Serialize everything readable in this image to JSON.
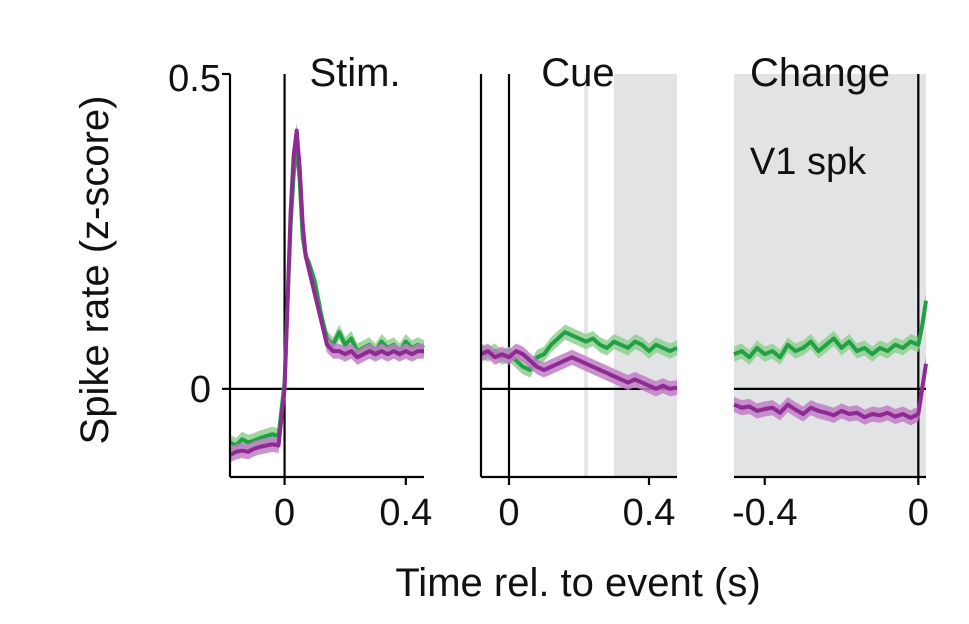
{
  "figure": {
    "ylabel": "Spike rate (z-score)",
    "xlabel": "Time rel. to event (s)",
    "annotation": "V1 spk",
    "ytick_labels": [
      "0",
      "0.5"
    ]
  },
  "colors": {
    "green": "#22a045",
    "purple": "#8e2a92",
    "green_band": "#8fd08f",
    "purple_band": "#c07ec5",
    "shade": "#e1e3e4",
    "axis": "#000000"
  },
  "chart_data": [
    {
      "type": "line",
      "title": "Stim.",
      "xlim": [
        -0.18,
        0.46
      ],
      "ylim": [
        -0.14,
        0.5
      ],
      "xticks": [
        0,
        0.4
      ],
      "xtick_labels": [
        "0",
        "0.4"
      ],
      "yticks": [
        0,
        0.5
      ],
      "event_line": 0,
      "shaded": [],
      "grid": false,
      "series": [
        {
          "color_key": "green",
          "x": [
            -0.18,
            -0.16,
            -0.14,
            -0.12,
            -0.1,
            -0.08,
            -0.06,
            -0.04,
            -0.02,
            0,
            0.01,
            0.02,
            0.03,
            0.04,
            0.05,
            0.06,
            0.07,
            0.08,
            0.1,
            0.12,
            0.14,
            0.16,
            0.18,
            0.2,
            0.22,
            0.24,
            0.26,
            0.28,
            0.3,
            0.32,
            0.34,
            0.36,
            0.38,
            0.4,
            0.42,
            0.44,
            0.46
          ],
          "y": [
            -0.085,
            -0.09,
            -0.08,
            -0.085,
            -0.082,
            -0.078,
            -0.075,
            -0.072,
            -0.075,
            0.01,
            0.14,
            0.26,
            0.34,
            0.39,
            0.33,
            0.24,
            0.21,
            0.2,
            0.17,
            0.12,
            0.08,
            0.07,
            0.09,
            0.07,
            0.08,
            0.06,
            0.065,
            0.07,
            0.06,
            0.075,
            0.065,
            0.07,
            0.06,
            0.075,
            0.065,
            0.07,
            0.065
          ]
        },
        {
          "color_key": "purple",
          "x": [
            -0.18,
            -0.16,
            -0.14,
            -0.12,
            -0.1,
            -0.08,
            -0.06,
            -0.04,
            -0.02,
            0,
            0.01,
            0.02,
            0.03,
            0.04,
            0.05,
            0.06,
            0.07,
            0.08,
            0.1,
            0.12,
            0.14,
            0.16,
            0.18,
            0.2,
            0.22,
            0.24,
            0.26,
            0.28,
            0.3,
            0.32,
            0.34,
            0.36,
            0.38,
            0.4,
            0.42,
            0.44,
            0.46
          ],
          "y": [
            -0.105,
            -0.1,
            -0.098,
            -0.1,
            -0.095,
            -0.092,
            -0.09,
            -0.088,
            -0.09,
            0.0,
            0.14,
            0.28,
            0.37,
            0.41,
            0.35,
            0.26,
            0.21,
            0.19,
            0.15,
            0.11,
            0.07,
            0.06,
            0.06,
            0.055,
            0.06,
            0.05,
            0.055,
            0.06,
            0.055,
            0.06,
            0.055,
            0.06,
            0.055,
            0.06,
            0.055,
            0.06,
            0.06
          ]
        }
      ]
    },
    {
      "type": "line",
      "title": "Cue",
      "xlim": [
        -0.08,
        0.48
      ],
      "ylim": [
        -0.14,
        0.5
      ],
      "xticks": [
        0,
        0.4
      ],
      "xtick_labels": [
        "0",
        "0.4"
      ],
      "yticks": [
        0
      ],
      "event_line": 0,
      "shaded": [
        [
          0.215,
          0.225
        ],
        [
          0.3,
          0.48
        ]
      ],
      "grid": false,
      "series": [
        {
          "color_key": "green",
          "x": [
            -0.08,
            -0.06,
            -0.04,
            -0.02,
            0,
            0.02,
            0.04,
            0.06,
            0.08,
            0.1,
            0.12,
            0.14,
            0.16,
            0.18,
            0.2,
            0.22,
            0.24,
            0.26,
            0.28,
            0.3,
            0.32,
            0.34,
            0.36,
            0.38,
            0.4,
            0.42,
            0.44,
            0.46,
            0.48
          ],
          "y": [
            0.06,
            0.055,
            0.06,
            0.05,
            0.055,
            0.045,
            0.035,
            0.03,
            0.05,
            0.055,
            0.07,
            0.08,
            0.09,
            0.085,
            0.08,
            0.075,
            0.08,
            0.07,
            0.065,
            0.075,
            0.07,
            0.065,
            0.075,
            0.07,
            0.06,
            0.07,
            0.065,
            0.06,
            0.065
          ]
        },
        {
          "color_key": "purple",
          "x": [
            -0.08,
            -0.06,
            -0.04,
            -0.02,
            0,
            0.02,
            0.04,
            0.06,
            0.08,
            0.1,
            0.12,
            0.14,
            0.16,
            0.18,
            0.2,
            0.22,
            0.24,
            0.26,
            0.28,
            0.3,
            0.32,
            0.34,
            0.36,
            0.38,
            0.4,
            0.42,
            0.44,
            0.46,
            0.48
          ],
          "y": [
            0.055,
            0.06,
            0.05,
            0.055,
            0.05,
            0.06,
            0.055,
            0.045,
            0.035,
            0.03,
            0.035,
            0.04,
            0.045,
            0.05,
            0.045,
            0.04,
            0.035,
            0.03,
            0.025,
            0.02,
            0.015,
            0.01,
            0.015,
            0.01,
            0.005,
            0.0,
            0.005,
            0.0,
            0.002
          ]
        }
      ]
    },
    {
      "type": "line",
      "title": "Change",
      "xlim": [
        -0.48,
        0.02
      ],
      "ylim": [
        -0.14,
        0.5
      ],
      "xticks": [
        -0.4,
        0
      ],
      "xtick_labels": [
        "-0.4",
        "0"
      ],
      "yticks": [
        0
      ],
      "event_line": 0,
      "shaded": [
        [
          -0.48,
          0.02
        ]
      ],
      "grid": false,
      "series": [
        {
          "color_key": "green",
          "x": [
            -0.48,
            -0.46,
            -0.44,
            -0.42,
            -0.4,
            -0.38,
            -0.36,
            -0.34,
            -0.32,
            -0.3,
            -0.28,
            -0.26,
            -0.24,
            -0.22,
            -0.2,
            -0.18,
            -0.16,
            -0.14,
            -0.12,
            -0.1,
            -0.08,
            -0.06,
            -0.04,
            -0.02,
            0,
            0.01,
            0.02
          ],
          "y": [
            0.055,
            0.06,
            0.05,
            0.065,
            0.055,
            0.06,
            0.05,
            0.07,
            0.06,
            0.065,
            0.075,
            0.06,
            0.07,
            0.08,
            0.065,
            0.075,
            0.06,
            0.065,
            0.055,
            0.065,
            0.06,
            0.07,
            0.065,
            0.075,
            0.07,
            0.1,
            0.14
          ]
        },
        {
          "color_key": "purple",
          "x": [
            -0.48,
            -0.46,
            -0.44,
            -0.42,
            -0.4,
            -0.38,
            -0.36,
            -0.34,
            -0.32,
            -0.3,
            -0.28,
            -0.26,
            -0.24,
            -0.22,
            -0.2,
            -0.18,
            -0.16,
            -0.14,
            -0.12,
            -0.1,
            -0.08,
            -0.06,
            -0.04,
            -0.02,
            0,
            0.01,
            0.02
          ],
          "y": [
            -0.025,
            -0.03,
            -0.028,
            -0.035,
            -0.032,
            -0.03,
            -0.038,
            -0.025,
            -0.033,
            -0.04,
            -0.03,
            -0.035,
            -0.038,
            -0.042,
            -0.035,
            -0.04,
            -0.038,
            -0.045,
            -0.04,
            -0.042,
            -0.038,
            -0.044,
            -0.04,
            -0.046,
            -0.04,
            0.0,
            0.04
          ]
        }
      ]
    }
  ]
}
